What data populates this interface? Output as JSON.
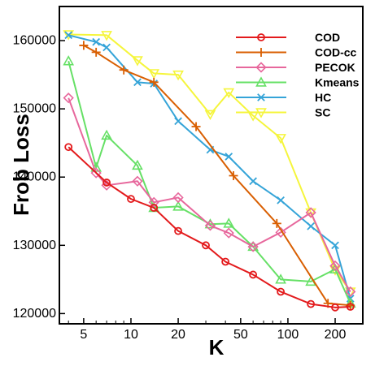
{
  "chart_data": {
    "type": "line",
    "xlabel": "K",
    "ylabel": "Frob Loss",
    "xscale": "log",
    "xlim": [
      3.5,
      300
    ],
    "ylim": [
      118500,
      165000
    ],
    "xticks": [
      5,
      10,
      20,
      50,
      100,
      200
    ],
    "xtick_labels": [
      "5",
      "10",
      "20",
      "50",
      "100",
      "200"
    ],
    "yticks": [
      120000,
      130000,
      140000,
      150000,
      160000
    ],
    "ytick_labels": [
      "120000",
      "130000",
      "140000",
      "150000",
      "160000"
    ],
    "legend_position": "top-right",
    "grid": false,
    "series": [
      {
        "name": "COD",
        "color": "#e31a1c",
        "marker": "circle",
        "x": [
          4,
          7,
          10,
          14,
          20,
          30,
          40,
          60,
          90,
          140,
          200,
          250
        ],
        "y": [
          144400,
          139200,
          136800,
          135500,
          132100,
          130000,
          127600,
          125700,
          123200,
          121400,
          120900,
          121000
        ]
      },
      {
        "name": "COD-cc",
        "color": "#d95f02",
        "marker": "plus",
        "x": [
          5,
          6,
          9,
          14,
          26,
          45,
          85,
          180,
          250
        ],
        "y": [
          159300,
          158300,
          155700,
          153900,
          147400,
          140200,
          133200,
          121500,
          121200
        ]
      },
      {
        "name": "PECOK",
        "color": "#e7679c",
        "marker": "diamond",
        "x": [
          4,
          6,
          7,
          11,
          14,
          20,
          32,
          42,
          60,
          90,
          140,
          200,
          250
        ],
        "y": [
          151600,
          140600,
          138800,
          139400,
          136300,
          137000,
          132900,
          131800,
          129800,
          131900,
          134800,
          127000,
          123200
        ]
      },
      {
        "name": "Kmeans",
        "color": "#66e066",
        "marker": "triangle-up",
        "x": [
          4,
          6,
          7,
          11,
          14,
          20,
          32,
          42,
          60,
          90,
          140,
          200,
          250
        ],
        "y": [
          157000,
          141400,
          146100,
          141700,
          135500,
          135700,
          133100,
          133200,
          129800,
          125000,
          124700,
          126500,
          121500
        ]
      },
      {
        "name": "HC",
        "color": "#35a4d8",
        "marker": "x",
        "x": [
          4,
          6,
          7,
          11,
          14,
          20,
          32,
          42,
          60,
          90,
          140,
          200,
          250
        ],
        "y": [
          160800,
          159800,
          159000,
          153900,
          153700,
          148200,
          144000,
          143000,
          139400,
          136600,
          132800,
          130000,
          122200
        ]
      },
      {
        "name": "SC",
        "color": "#f5f53c",
        "marker": "triangle-down",
        "x": [
          4,
          7,
          11,
          14,
          20,
          32,
          42,
          60,
          90,
          140,
          200,
          250
        ],
        "y": [
          160900,
          160800,
          157100,
          155200,
          155000,
          149200,
          152400,
          149000,
          145700,
          134800,
          126400,
          123200
        ]
      }
    ]
  }
}
